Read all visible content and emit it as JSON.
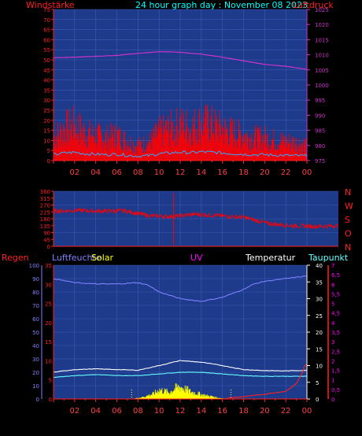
{
  "header": {
    "left_label": "Windstärke",
    "title": "24 hour graph day : November 08 2023",
    "right_label": "Luftdruck"
  },
  "colors": {
    "background": "#000000",
    "plot_bg": "#1e3a8a",
    "grid": "#3b5bb5",
    "frame_axis": "#ff2020",
    "wind": "#ff0000",
    "wind_low": "#33aaff",
    "pressure": "#cc33cc",
    "title": "#00ffff",
    "humidity": "#8080ff",
    "solar": "#ffff00",
    "uv": "#ff00ff",
    "temperature": "#ffffff",
    "dewpoint": "#66ffff",
    "rain": "#ff2020"
  },
  "x_ticks": [
    "02",
    "04",
    "06",
    "08",
    "10",
    "12",
    "14",
    "16",
    "18",
    "20",
    "22",
    "00"
  ],
  "panel1": {
    "left_ticks": [
      "75",
      "70",
      "65",
      "60",
      "55",
      "50",
      "45",
      "40",
      "35",
      "30",
      "25",
      "20",
      "15",
      "10",
      "5",
      "0"
    ],
    "right_ticks": [
      "1025",
      "1020",
      "1015",
      "1010",
      "1005",
      "1000",
      "995",
      "990",
      "985",
      "980",
      "975"
    ],
    "chart_data": {
      "type": "line",
      "x_range_hours": [
        0,
        24
      ],
      "series": [
        {
          "name": "Windstärke",
          "axis": "left",
          "ylim": [
            0,
            75
          ],
          "keypoints_hours": [
            0,
            1,
            2,
            3,
            4,
            5,
            6,
            7,
            8,
            9,
            10,
            11,
            12,
            13,
            14,
            15,
            16,
            17,
            18,
            19,
            20,
            21,
            22,
            23,
            24
          ],
          "gust_peak": [
            18,
            25,
            28,
            22,
            20,
            18,
            20,
            15,
            12,
            14,
            22,
            25,
            28,
            26,
            30,
            28,
            25,
            22,
            20,
            18,
            18,
            16,
            15,
            14,
            13
          ]
        },
        {
          "name": "Luftdruck",
          "axis": "right",
          "ylim": [
            975,
            1025
          ],
          "keypoints_hours": [
            0,
            2,
            4,
            6,
            8,
            10,
            11,
            12,
            14,
            16,
            18,
            20,
            22,
            24
          ],
          "values": [
            1009,
            1009.2,
            1009.5,
            1009.8,
            1010.5,
            1011,
            1011,
            1010.8,
            1010.2,
            1009.2,
            1008,
            1006.8,
            1006.2,
            1005.2
          ]
        }
      ]
    }
  },
  "panel2": {
    "left_ticks": [
      "360",
      "315",
      "270",
      "225",
      "180",
      "135",
      "90",
      "45",
      "0"
    ],
    "compass": [
      "N",
      "W",
      "S",
      "O",
      "N"
    ],
    "chart_data": {
      "type": "scatter",
      "name": "Windrichtung",
      "ylim": [
        0,
        360
      ],
      "keypoints_hours": [
        0,
        2,
        4,
        6,
        8,
        10,
        12,
        14,
        16,
        18,
        20,
        22,
        24
      ],
      "values": [
        230,
        235,
        230,
        232,
        200,
        195,
        210,
        200,
        190,
        150,
        135,
        130,
        135
      ]
    }
  },
  "panel3": {
    "labels": {
      "rain": "Regen",
      "humidity": "Luftfeuchte",
      "solar": "Solar",
      "uv": "UV",
      "temperature": "Temperatur",
      "dewpoint": "Taupunkt"
    },
    "humidity_ticks": [
      "100",
      "90",
      "80",
      "70",
      "60",
      "50",
      "40",
      "30",
      "20",
      "10",
      "0"
    ],
    "rain_ticks": [
      "35",
      "30",
      "25",
      "20",
      "15",
      "10",
      "5",
      "0"
    ],
    "temp_ticks": [
      "40",
      "35",
      "30",
      "25",
      "20",
      "15",
      "10",
      "5",
      "0"
    ],
    "uv_ticks": [
      "7",
      "6,5",
      "6",
      "5,5",
      "5",
      "4,5",
      "4",
      "3,5",
      "3",
      "2,5",
      "2",
      "1,5",
      "1",
      "0,5",
      "0"
    ],
    "chart_data": {
      "type": "line",
      "x_range_hours": [
        0,
        24
      ],
      "series": [
        {
          "name": "Luftfeuchte",
          "ylim": [
            0,
            100
          ],
          "keypoints_hours": [
            0,
            2,
            4,
            6,
            8,
            9,
            10,
            12,
            14,
            16,
            18,
            19,
            20,
            22,
            24
          ],
          "values": [
            90,
            87,
            86,
            86,
            87,
            85,
            80,
            75,
            73,
            76,
            82,
            86,
            88,
            90,
            92
          ]
        },
        {
          "name": "Temperatur",
          "ylim": [
            0,
            40
          ],
          "keypoints_hours": [
            0,
            2,
            4,
            6,
            8,
            10,
            12,
            14,
            16,
            18,
            20,
            22,
            24
          ],
          "values": [
            8,
            8.8,
            9,
            8.8,
            8.6,
            10,
            11.5,
            11,
            10,
            8.8,
            8.5,
            8.4,
            8.6
          ]
        },
        {
          "name": "Taupunkt",
          "ylim": [
            0,
            40
          ],
          "keypoints_hours": [
            0,
            2,
            4,
            6,
            8,
            10,
            12,
            14,
            16,
            18,
            20,
            22,
            24
          ],
          "values": [
            6.5,
            7,
            7.3,
            7,
            7,
            7.5,
            8,
            8,
            7.5,
            7,
            6.8,
            6.8,
            6.8
          ]
        },
        {
          "name": "Solar",
          "axis": "uv",
          "ylim": [
            0,
            7
          ],
          "keypoints_hours": [
            7.4,
            8.5,
            9.5,
            10,
            10.5,
            11,
            11.5,
            12,
            12.5,
            13,
            13.5,
            14,
            14.5,
            15,
            15.5,
            16,
            16.8
          ],
          "values": [
            0,
            0.15,
            0.4,
            0.7,
            0.6,
            0.5,
            0.8,
            0.95,
            0.75,
            0.55,
            0.45,
            0.35,
            0.25,
            0.2,
            0.1,
            0.05,
            0
          ]
        },
        {
          "name": "Regen",
          "ylim": [
            0,
            35
          ],
          "keypoints_hours": [
            0,
            16.4,
            16.5,
            17,
            18,
            19,
            20,
            20.5,
            21,
            21.5,
            22,
            22.5,
            23,
            23.6,
            23.8,
            24
          ],
          "values": [
            0,
            0,
            0.3,
            0.4,
            0.6,
            1,
            1.2,
            1.5,
            1.6,
            1.8,
            2,
            3,
            4,
            7,
            9,
            9
          ]
        }
      ]
    }
  }
}
